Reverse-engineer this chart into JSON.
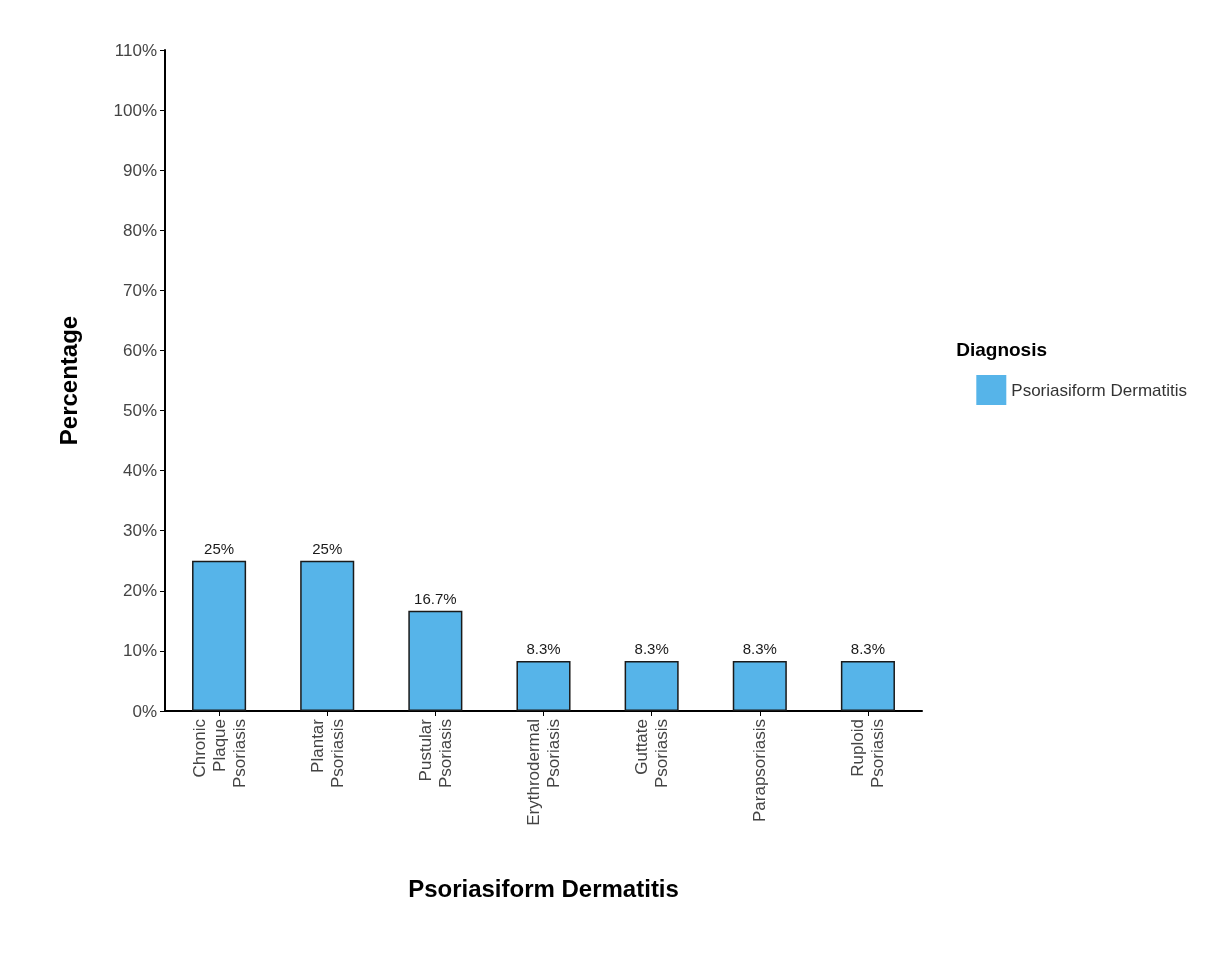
{
  "chart_data": {
    "type": "bar",
    "xlabel": "Psoriasiform Dermatitis",
    "ylabel": "Percentage",
    "legend_title": "Diagnosis",
    "legend": "right",
    "categories": [
      "Chronic Plaque Psoriasis",
      "Plantar Psoriasis",
      "Pustular Psoriasis",
      "Erythrodermal Psoriasis",
      "Guttate Psoriasis",
      "Parapsoriasis",
      "Ruploid Psoriasis"
    ],
    "series": [
      {
        "name": "Psoriasiform Dermatitis",
        "color": "#56b4e9",
        "values": [
          25,
          25,
          16.7,
          8.3,
          8.3,
          8.3,
          8.3
        ],
        "value_labels": [
          "25%",
          "25%",
          "16.7%",
          "8.3%",
          "8.3%",
          "8.3%",
          "8.3%"
        ]
      }
    ],
    "ylim": [
      0,
      110
    ],
    "yticks": [
      {
        "value": 0,
        "label": "0%"
      },
      {
        "value": 10,
        "label": "10%"
      },
      {
        "value": 20,
        "label": "20%"
      },
      {
        "value": 30,
        "label": "30%"
      },
      {
        "value": 40,
        "label": "40%"
      },
      {
        "value": 50,
        "label": "50%"
      },
      {
        "value": 60,
        "label": "60%"
      },
      {
        "value": 70,
        "label": "70%"
      },
      {
        "value": 80,
        "label": "80%"
      },
      {
        "value": 90,
        "label": "90%"
      },
      {
        "value": 100,
        "label": "100%"
      },
      {
        "value": 110,
        "label": "110%"
      }
    ],
    "grid": false
  }
}
